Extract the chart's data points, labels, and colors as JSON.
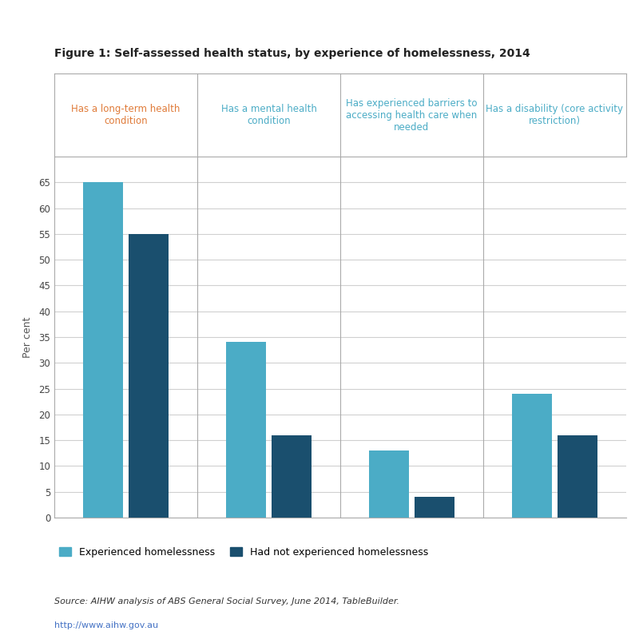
{
  "title": "Figure 1: Self-assessed health status, by experience of homelessness, 2014",
  "categories": [
    "Has a long-term health\ncondition",
    "Has a mental health\ncondition",
    "Has experienced barriers to\naccessing health care when\nneeded",
    "Has a disability (core activity\nrestriction)"
  ],
  "category_colors": [
    "#e07b39",
    "#4bacc6",
    "#4bacc6",
    "#4bacc6"
  ],
  "experienced": [
    65,
    34,
    13,
    24
  ],
  "not_experienced": [
    55,
    16,
    4,
    16
  ],
  "color_experienced": "#4bacc6",
  "color_not_experienced": "#1a4f6e",
  "ylabel": "Per cent",
  "ylim": [
    0,
    70
  ],
  "yticks": [
    0,
    5,
    10,
    15,
    20,
    25,
    30,
    35,
    40,
    45,
    50,
    55,
    60,
    65
  ],
  "legend_experienced": "Experienced homelessness",
  "legend_not_experienced": "Had not experienced homelessness",
  "source_text": "Source: AIHW analysis of ABS General Social Survey, June 2014, TableBuilder.",
  "url_text": "http://www.aihw.gov.au",
  "background_color": "#ffffff",
  "grid_color": "#d0d0d0"
}
